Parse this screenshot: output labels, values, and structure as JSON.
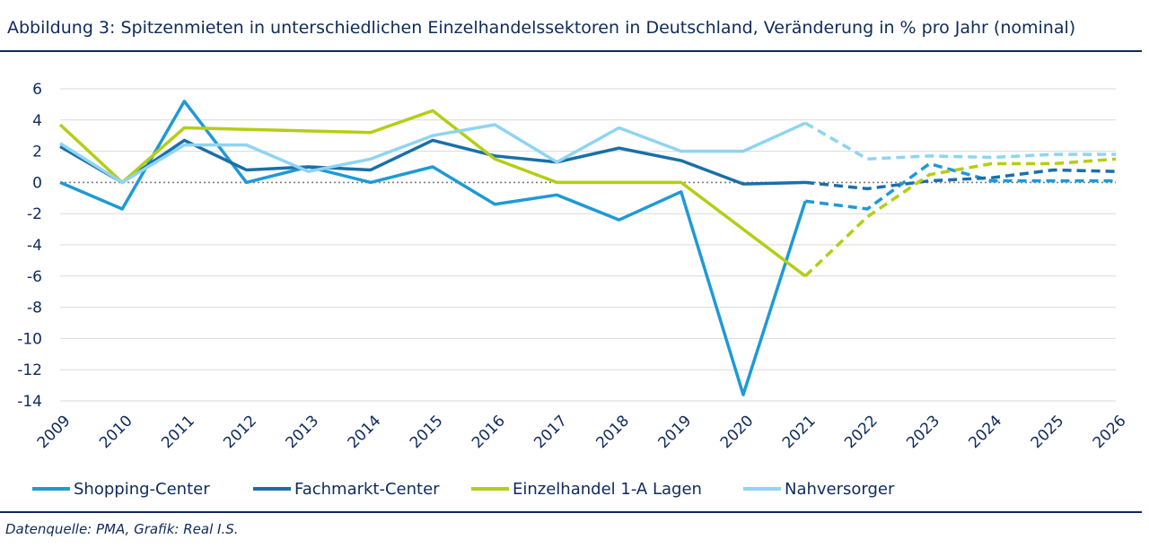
{
  "header": {
    "title": "Abbildung 3: Spitzenmieten in unterschiedlichen Einzelhandelssektoren in Deutschland, Veränderung in % pro Jahr (nominal)"
  },
  "footer": {
    "source": "Datenquelle: PMA, Grafik: Real I.S."
  },
  "colors": {
    "text": "#0e2a5c",
    "grid": "#d9d9d9",
    "zero_line": "#7f7f7f"
  },
  "chart_data": {
    "type": "line",
    "x": [
      "2009",
      "2010",
      "2011",
      "2012",
      "2013",
      "2014",
      "2015",
      "2016",
      "2017",
      "2018",
      "2019",
      "2020",
      "2021",
      "2022",
      "2023",
      "2024",
      "2025",
      "2026"
    ],
    "ylim": [
      -14,
      6
    ],
    "yticks": [
      6,
      4,
      2,
      0,
      -2,
      -4,
      -6,
      -8,
      -10,
      -12,
      -14
    ],
    "grid": true,
    "legend_position": "bottom",
    "forecast_from": "2021",
    "series": [
      {
        "name": "Shopping-Center",
        "color": "#1e9ad6",
        "values": [
          0,
          -1.7,
          5.2,
          0,
          1.0,
          0,
          1.0,
          -1.4,
          -0.8,
          -2.4,
          -0.6,
          -13.6,
          -1.2,
          -1.7,
          1.2,
          0.1,
          0.1,
          0.1
        ]
      },
      {
        "name": "Fachmarkt-Center",
        "color": "#1a6fa8",
        "values": [
          2.3,
          0,
          2.7,
          0.8,
          1.0,
          0.8,
          2.7,
          1.7,
          1.3,
          2.2,
          1.4,
          -0.1,
          0,
          -0.4,
          0.1,
          0.3,
          0.8,
          0.7
        ]
      },
      {
        "name": "Einzelhandel 1-A Lagen",
        "color": "#b5cd14",
        "values": [
          3.7,
          0,
          3.5,
          3.4,
          3.3,
          3.2,
          4.6,
          1.5,
          0,
          0,
          0,
          -3.0,
          -6.0,
          -2.2,
          0.5,
          1.2,
          1.2,
          1.5
        ]
      },
      {
        "name": "Nahversorger",
        "color": "#8fd4f2",
        "values": [
          2.5,
          0,
          2.4,
          2.4,
          0.7,
          1.5,
          3.0,
          3.7,
          1.3,
          3.5,
          2.0,
          2.0,
          3.8,
          1.5,
          1.7,
          1.6,
          1.8,
          1.8
        ]
      }
    ]
  }
}
